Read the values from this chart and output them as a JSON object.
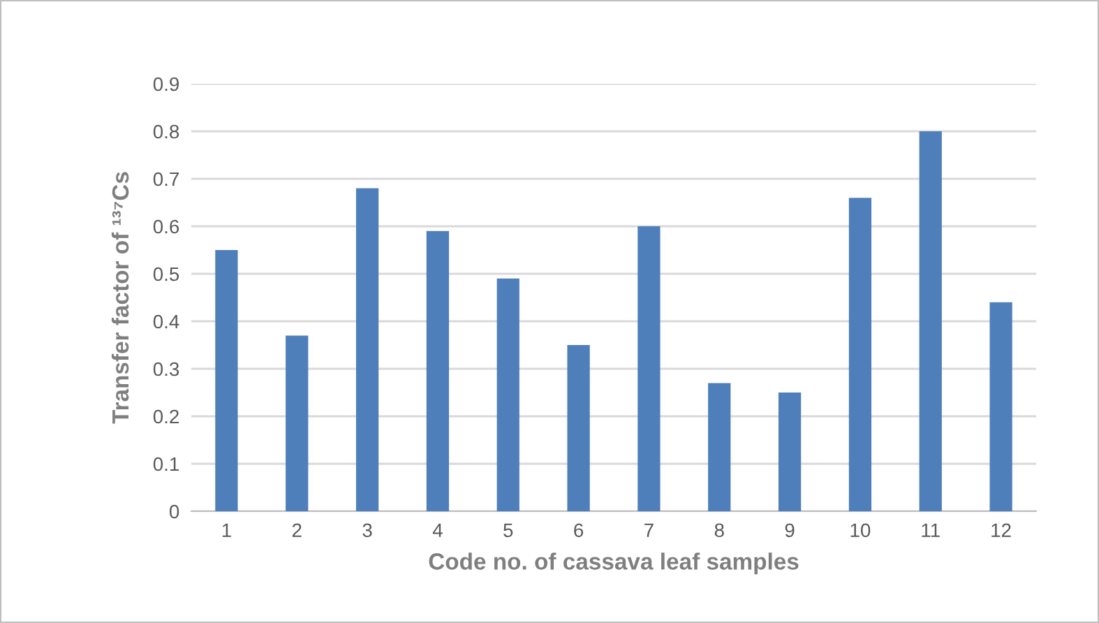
{
  "chart_data": {
    "type": "bar",
    "xlabel": "Code no. of cassava leaf samples",
    "ylabel": "Transfer factor of ¹³⁷Cs",
    "categories": [
      "1",
      "2",
      "3",
      "4",
      "5",
      "6",
      "7",
      "8",
      "9",
      "10",
      "11",
      "12"
    ],
    "values": [
      0.55,
      0.37,
      0.68,
      0.59,
      0.49,
      0.35,
      0.6,
      0.27,
      0.25,
      0.66,
      0.8,
      0.44
    ],
    "color": "#4f7fbb",
    "ylim": [
      0,
      0.9
    ],
    "yticks": [
      0,
      0.1,
      0.2,
      0.3,
      0.4,
      0.5,
      0.6,
      0.7,
      0.8,
      0.9
    ],
    "grid": "y"
  }
}
